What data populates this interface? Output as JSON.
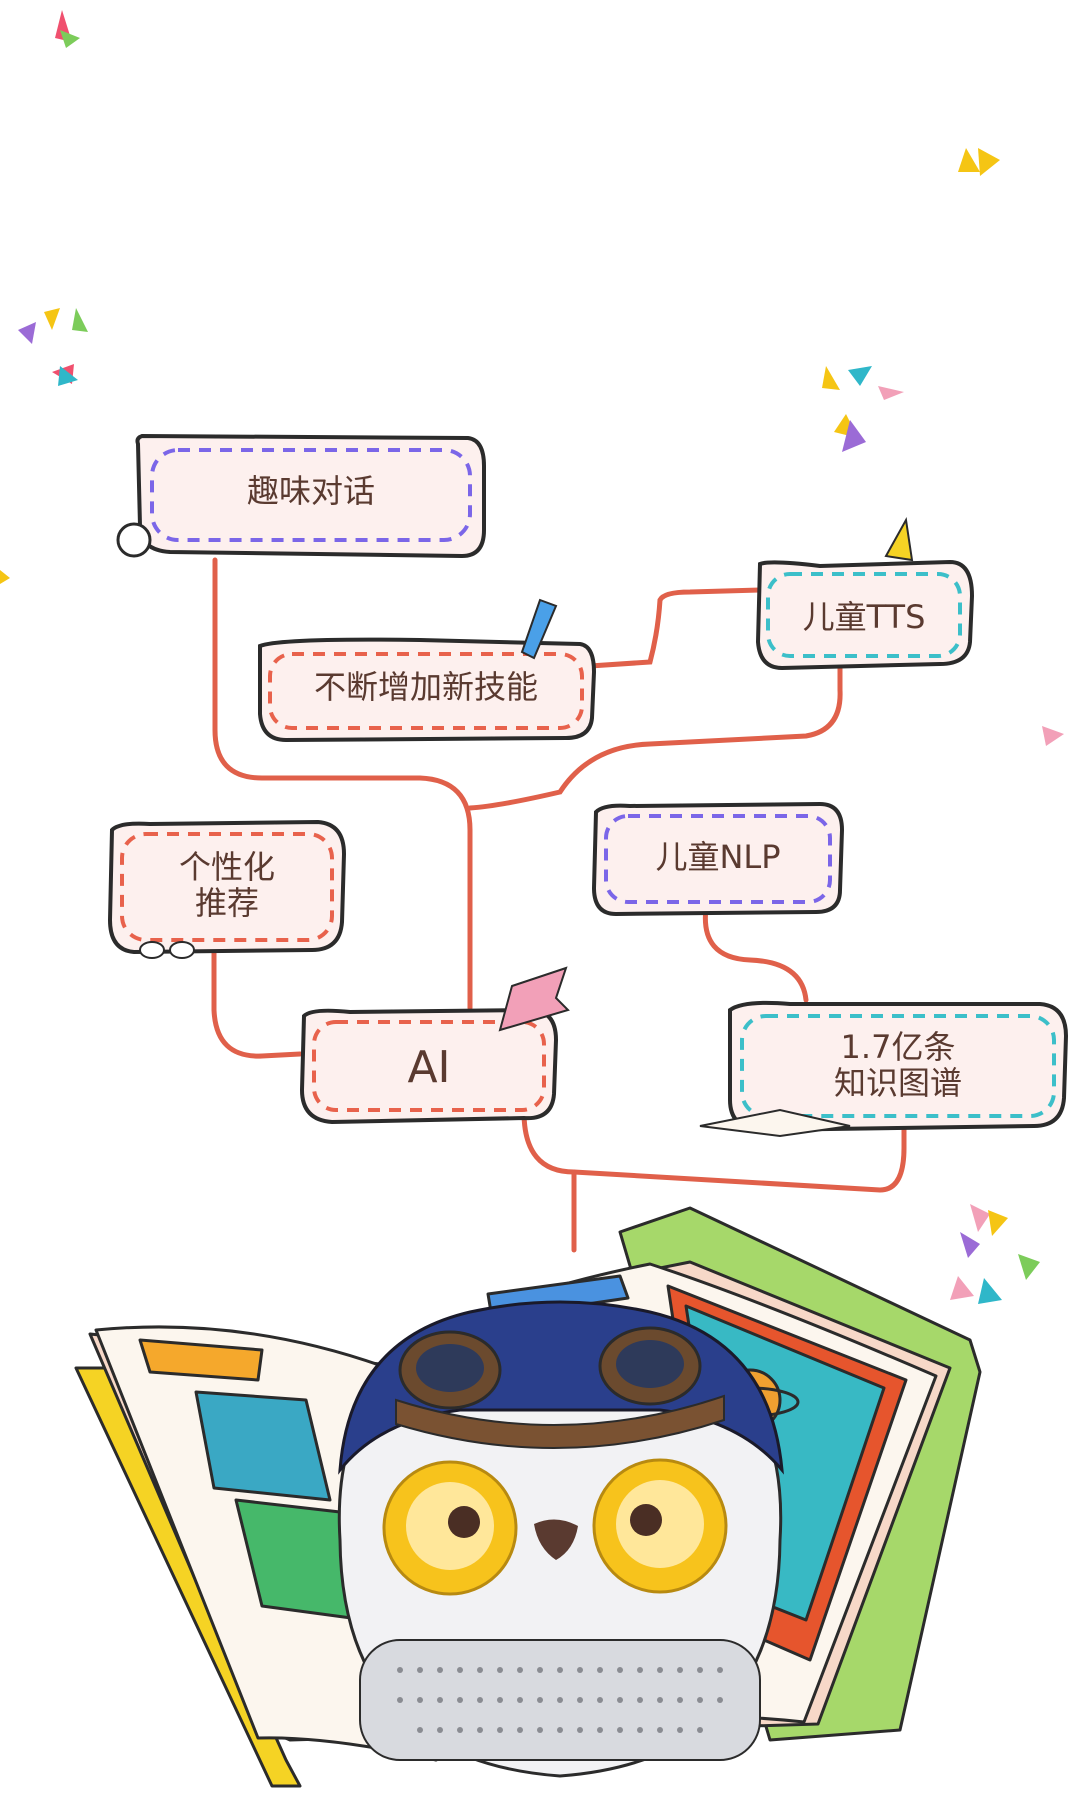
{
  "nodes": {
    "fun_dialog": "趣味对话",
    "new_skills": "不断增加新技能",
    "kids_tts": "儿童TTS",
    "personalized_line1": "个性化",
    "personalized_line2": "推荐",
    "kids_nlp": "儿童NLP",
    "ai": "AI",
    "knowledge_line1": "1.7亿条",
    "knowledge_line2": "知识图谱"
  },
  "colors": {
    "connector": "#e0604a",
    "outline": "#2b2b2b",
    "bubble_fill": "#fdf0ee",
    "dash_purple": "#7b66e8",
    "dash_red": "#e8624c",
    "dash_teal": "#3cbfc9",
    "text": "#5a3a30"
  }
}
